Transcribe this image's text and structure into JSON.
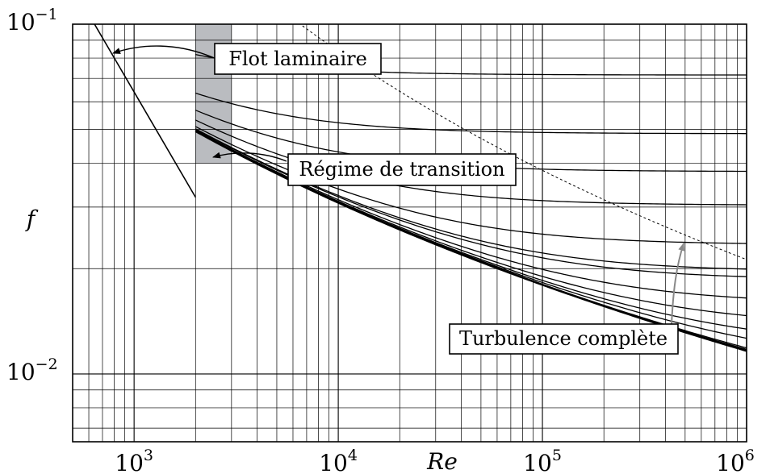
{
  "chart_data": {
    "type": "line",
    "xlabel": "Re",
    "ylabel": "f",
    "x_scale": "log",
    "y_scale": "log",
    "xlim": [
      500,
      1000000
    ],
    "ylim": [
      0.0064,
      0.1
    ],
    "grid": true,
    "x_tick_labels": [
      {
        "base": "10",
        "exp": "3",
        "value": 1000
      },
      {
        "base": "10",
        "exp": "4",
        "value": 10000
      },
      {
        "base": "10",
        "exp": "5",
        "value": 100000
      },
      {
        "base": "10",
        "exp": "6",
        "value": 1000000
      }
    ],
    "y_tick_labels": [
      {
        "base": "10",
        "exp": "−1",
        "value": 0.1
      },
      {
        "base": "10",
        "exp": "−2",
        "value": 0.01
      }
    ],
    "transition_zone": {
      "x": [
        2000,
        3000
      ],
      "y": [
        0.04,
        0.1
      ],
      "color": "#babcc0"
    },
    "laminar": {
      "x": [
        500,
        2000
      ],
      "formula": "f = 64/Re"
    },
    "relative_roughness": [
      0,
      1e-06,
      5e-06,
      1e-05,
      5e-05,
      0.0001,
      0.0002,
      0.0004,
      0.0008,
      0.001,
      0.002,
      0.005,
      0.01,
      0.02,
      0.05
    ],
    "turbulent_x_range": [
      2000,
      1000000
    ],
    "complete_turbulence_line": {
      "style": "dashed",
      "x_range": [
        3500,
        1000000
      ]
    },
    "annotations": [
      {
        "id": "laminar",
        "text": "Flot laminaire"
      },
      {
        "id": "transition",
        "text": "Régime de transition"
      },
      {
        "id": "turbulence",
        "text": "Turbulence complète"
      }
    ]
  }
}
